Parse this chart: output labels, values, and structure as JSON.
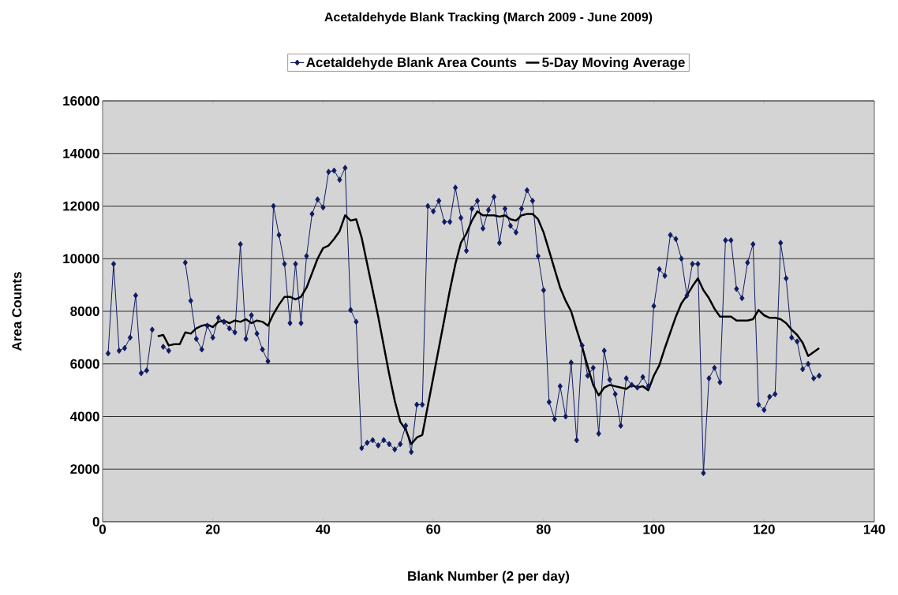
{
  "chart_data": {
    "type": "line",
    "title": "Acetaldehyde Blank Tracking (March 2009 - June 2009)",
    "xlabel": "Blank Number (2 per day)",
    "ylabel": "Area Counts",
    "xlim": [
      0,
      140
    ],
    "xticks": [
      0,
      20,
      40,
      60,
      80,
      100,
      120,
      140
    ],
    "ylim": [
      0,
      16000
    ],
    "yticks": [
      0,
      2000,
      4000,
      6000,
      8000,
      10000,
      12000,
      14000,
      16000
    ],
    "grid": "y",
    "legend": "top",
    "series": [
      {
        "name": "Acetaldehyde Blank Area Counts",
        "color": "#0f1c64",
        "marker": "diamond",
        "x": [
          1,
          2,
          3,
          4,
          5,
          6,
          7,
          8,
          9,
          10,
          11,
          12,
          13,
          14,
          15,
          16,
          17,
          18,
          19,
          20,
          21,
          22,
          23,
          24,
          25,
          26,
          27,
          28,
          29,
          30,
          31,
          32,
          33,
          34,
          35,
          36,
          37,
          38,
          39,
          40,
          41,
          42,
          43,
          44,
          45,
          46,
          47,
          48,
          49,
          50,
          51,
          52,
          53,
          54,
          55,
          56,
          57,
          58,
          59,
          60,
          61,
          62,
          63,
          64,
          65,
          66,
          67,
          68,
          69,
          70,
          71,
          72,
          73,
          74,
          75,
          76,
          77,
          78,
          79,
          80,
          81,
          82,
          83,
          84,
          85,
          86,
          87,
          88,
          89,
          90,
          91,
          92,
          93,
          94,
          95,
          96,
          97,
          98,
          99,
          100,
          101,
          102,
          103,
          104,
          105,
          106,
          107,
          108,
          109,
          110,
          111,
          112,
          113,
          114,
          115,
          116,
          117,
          118,
          119,
          120,
          121,
          122,
          123,
          124,
          125,
          126,
          127,
          128,
          129,
          130
        ],
        "values": [
          6400,
          9800,
          6500,
          6600,
          7000,
          8600,
          5650,
          5750,
          7300,
          null,
          6650,
          6500,
          null,
          null,
          9850,
          8400,
          6950,
          6550,
          7450,
          7000,
          7750,
          7600,
          7350,
          7200,
          10550,
          6950,
          7850,
          7150,
          6550,
          6100,
          12000,
          10900,
          9800,
          7550,
          9800,
          7550,
          10100,
          11700,
          12250,
          11950,
          13300,
          13350,
          13000,
          13450,
          8050,
          7600,
          2800,
          3000,
          3100,
          2900,
          3100,
          2950,
          2750,
          2950,
          3650,
          2650,
          4450,
          4450,
          12000,
          11800,
          12200,
          11400,
          11400,
          12700,
          11550,
          10300,
          11900,
          12200,
          11150,
          11850,
          12350,
          10600,
          11900,
          11250,
          11000,
          11900,
          12600,
          12200,
          10100,
          8800,
          4550,
          3900,
          5150,
          4000,
          6050,
          3100,
          6700,
          5550,
          5850,
          3350,
          6500,
          5400,
          4850,
          3650,
          5450,
          5200,
          5100,
          5500,
          5150,
          8200,
          9600,
          9350,
          10900,
          10750,
          10000,
          8600,
          9800,
          9800,
          1850,
          5450,
          5850,
          5300,
          10700,
          10700,
          8850,
          8500,
          9850,
          10550,
          4450,
          4250,
          4750,
          4850,
          10600,
          9250,
          7000,
          6850,
          5800,
          6000,
          5450,
          5550
        ]
      },
      {
        "name": "5-Day Moving Average",
        "color": "#000000",
        "marker": "none",
        "x": [
          10,
          11,
          12,
          13,
          14,
          15,
          16,
          17,
          18,
          19,
          20,
          21,
          22,
          23,
          24,
          25,
          26,
          27,
          28,
          29,
          30,
          31,
          32,
          33,
          34,
          35,
          36,
          37,
          38,
          39,
          40,
          41,
          42,
          43,
          44,
          45,
          46,
          47,
          48,
          49,
          50,
          51,
          52,
          53,
          54,
          55,
          56,
          57,
          58,
          59,
          60,
          61,
          62,
          63,
          64,
          65,
          66,
          67,
          68,
          69,
          70,
          71,
          72,
          73,
          74,
          75,
          76,
          77,
          78,
          79,
          80,
          81,
          82,
          83,
          84,
          85,
          86,
          87,
          88,
          89,
          90,
          91,
          92,
          93,
          94,
          95,
          96,
          97,
          98,
          99,
          100,
          101,
          102,
          103,
          104,
          105,
          106,
          107,
          108,
          109,
          110,
          111,
          112,
          113,
          114,
          115,
          116,
          117,
          118,
          119,
          120,
          121,
          122,
          123,
          124,
          125,
          126,
          127,
          128,
          129,
          130
        ],
        "values": [
          7050,
          7100,
          6700,
          6750,
          6750,
          7200,
          7150,
          7350,
          7450,
          7500,
          7400,
          7600,
          7650,
          7550,
          7650,
          7600,
          7700,
          7550,
          7650,
          7600,
          7450,
          7900,
          8250,
          8550,
          8550,
          8450,
          8550,
          8900,
          9450,
          10000,
          10400,
          10500,
          10750,
          11050,
          11650,
          11450,
          11500,
          10800,
          9800,
          8800,
          7800,
          6700,
          5600,
          4600,
          3800,
          3500,
          2950,
          3200,
          3300,
          4400,
          5500,
          6600,
          7700,
          8800,
          9800,
          10600,
          10950,
          11450,
          11800,
          11650,
          11650,
          11650,
          11600,
          11650,
          11500,
          11450,
          11650,
          11700,
          11700,
          11500,
          11000,
          10300,
          9600,
          8900,
          8400,
          8000,
          7300,
          6650,
          5900,
          5200,
          4800,
          5100,
          5200,
          5150,
          5100,
          5050,
          5200,
          5100,
          5150,
          5000,
          5550,
          5950,
          6600,
          7200,
          7800,
          8300,
          8600,
          8950,
          9250,
          8800,
          8500,
          8100,
          7800,
          7800,
          7800,
          7650,
          7650,
          7650,
          7700,
          8050,
          7850,
          7750,
          7750,
          7700,
          7550,
          7300,
          7100,
          6800,
          6300,
          6450,
          6600
        ]
      }
    ]
  }
}
